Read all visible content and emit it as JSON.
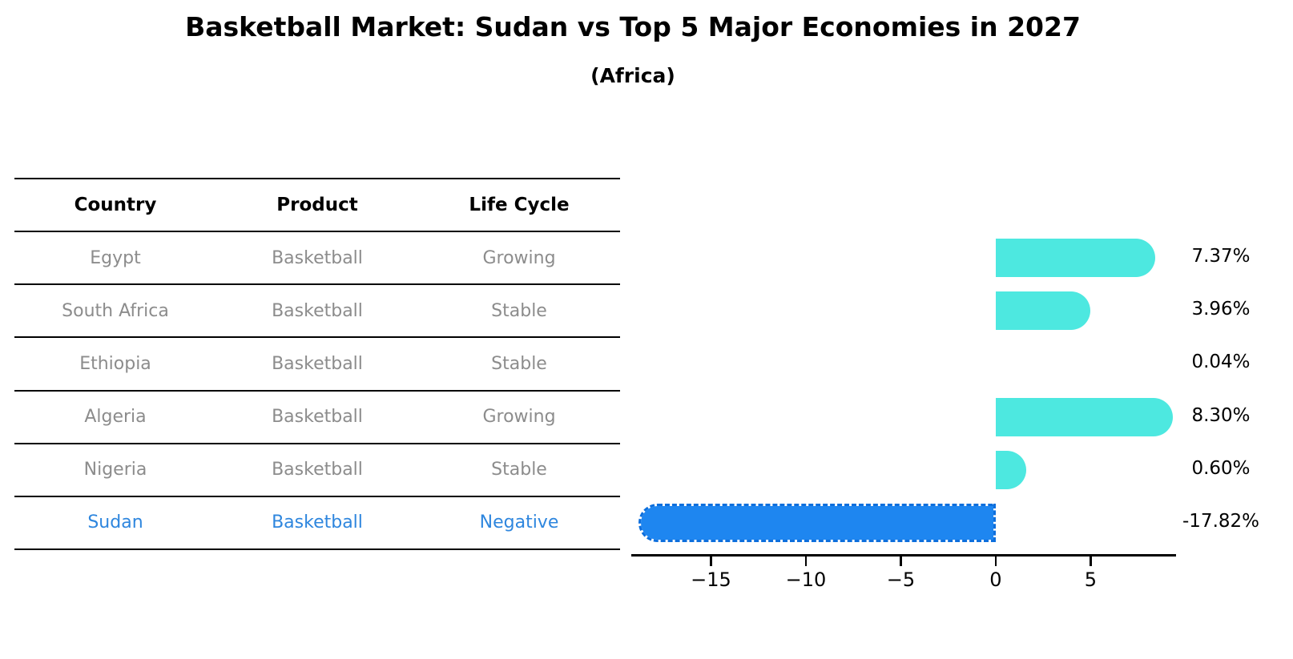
{
  "header": {
    "title": "Basketball Market: Sudan vs Top 5 Major Economies in 2027",
    "subtitle": "(Africa)"
  },
  "colors": {
    "bar_positive": "#4de8e0",
    "bar_negative_fill": "#1e86f0",
    "bar_negative_border": "#0d6fdd",
    "highlight_text": "#2e86de",
    "table_text": "#8c8c8c",
    "axis_text": "#000000"
  },
  "chart_data": {
    "type": "bar",
    "orientation": "horizontal",
    "title": "Basketball Market: Sudan vs Top 5 Major Economies in 2027",
    "subtitle": "(Africa)",
    "columns": [
      "Country",
      "Product",
      "Life Cycle"
    ],
    "rows": [
      {
        "country": "Egypt",
        "product": "Basketball",
        "life_cycle": "Growing",
        "value": 7.37,
        "value_label": "7.37%",
        "highlight": false
      },
      {
        "country": "South Africa",
        "product": "Basketball",
        "life_cycle": "Stable",
        "value": 3.96,
        "value_label": "3.96%",
        "highlight": false
      },
      {
        "country": "Ethiopia",
        "product": "Basketball",
        "life_cycle": "Stable",
        "value": 0.04,
        "value_label": "0.04%",
        "highlight": false
      },
      {
        "country": "Algeria",
        "product": "Basketball",
        "life_cycle": "Growing",
        "value": 8.3,
        "value_label": "8.30%",
        "highlight": false
      },
      {
        "country": "Nigeria",
        "product": "Basketball",
        "life_cycle": "Stable",
        "value": 0.6,
        "value_label": "0.60%",
        "highlight": false
      },
      {
        "country": "Sudan",
        "product": "Basketball",
        "life_cycle": "Negative",
        "value": -17.82,
        "value_label": "-17.82%",
        "highlight": true
      }
    ],
    "xlim": [
      -19.2,
      9.5
    ],
    "xticks": [
      {
        "value": -15,
        "label": "−15"
      },
      {
        "value": -10,
        "label": "−10"
      },
      {
        "value": -5,
        "label": "−5"
      },
      {
        "value": 0,
        "label": "0"
      },
      {
        "value": 5,
        "label": "5"
      }
    ],
    "grid": false,
    "legend": false,
    "xlabel": "",
    "ylabel": ""
  }
}
